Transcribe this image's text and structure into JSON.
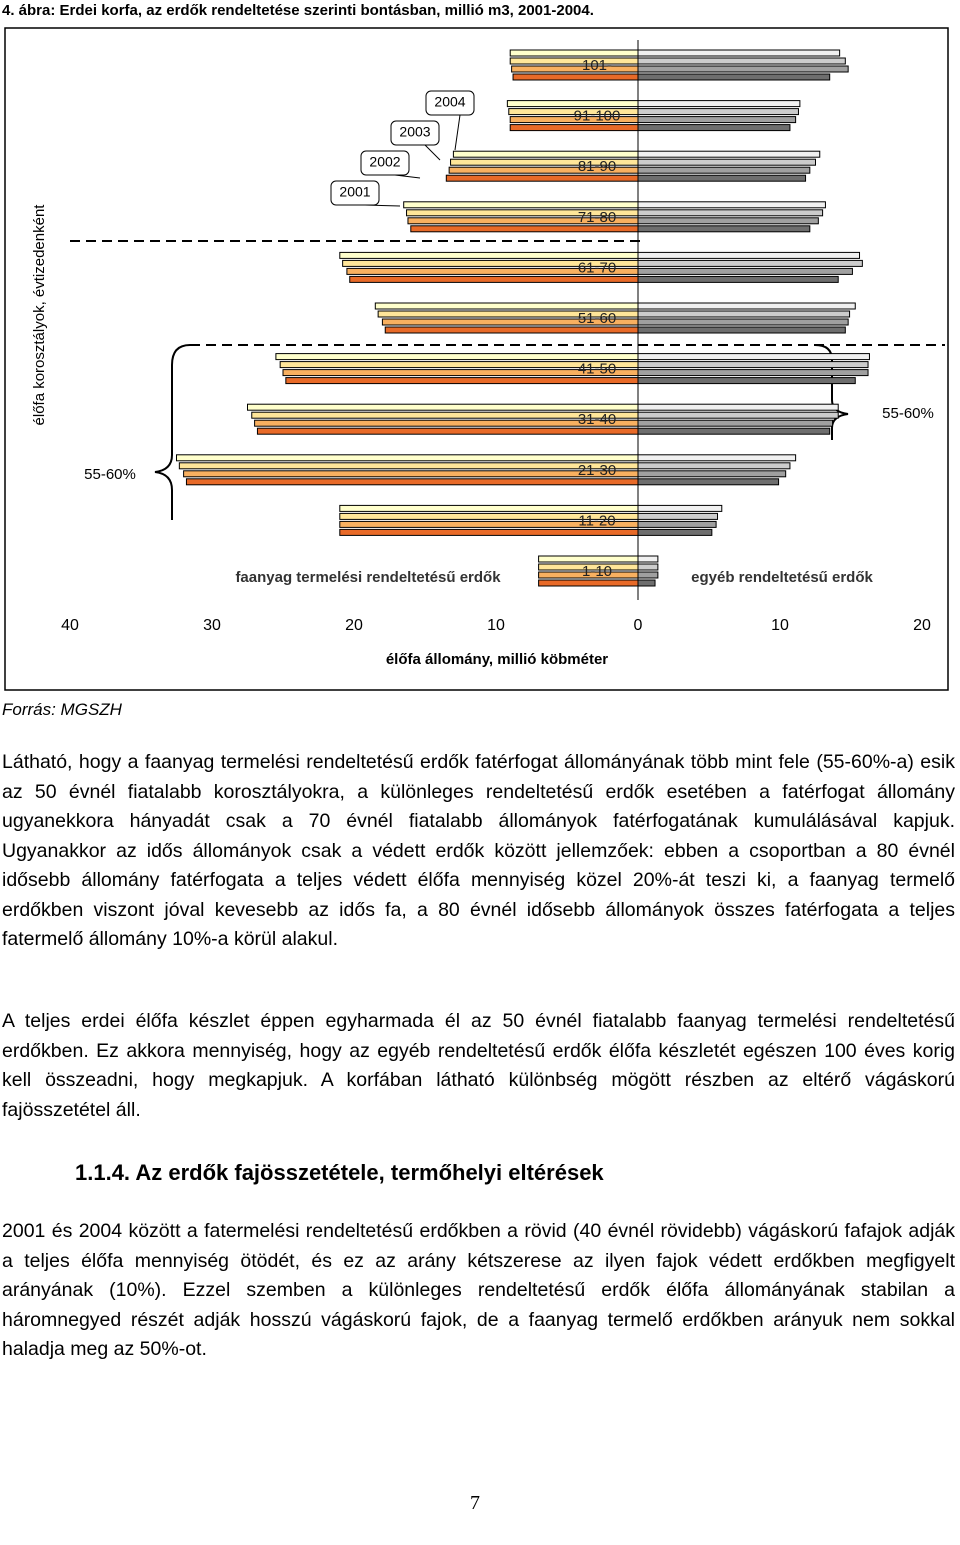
{
  "document": {
    "figure_title": "4. ábra: Erdei korfa, az erdők rendeltetése szerinti bontásban, millió m3, 2001-2004.",
    "source": "Forrás: MGSZH",
    "paragraphs": [
      "Látható, hogy a faanyag termelési rendeltetésű erdők fatérfogat állományának több mint fele (55-60%-a) esik az 50 évnél fiatalabb korosztályokra, a különleges rendeltetésű erdők esetében a fatérfogat állomány ugyanekkora hányadát csak a 70 évnél fiatalabb állományok fatérfogatának kumulálásával kapjuk. Ugyanakkor az idős állományok csak a védett erdők között jellemzőek: ebben a csoportban a 80 évnél idősebb állomány fatérfogata a teljes védett élőfa mennyiség közel 20%-át teszi ki, a faanyag termelő erdőkben viszont jóval kevesebb az idős fa, a 80 évnél idősebb állományok összes fatérfogata a teljes fatermelő állomány 10%-a körül alakul.",
      "A teljes erdei élőfa készlet éppen egyharmada él az 50 évnél fiatalabb faanyag termelési rendeltetésű erdőkben. Ez akkora mennyiség, hogy az egyéb rendeltetésű erdők élőfa készletét egészen 100 éves korig kell összeadni, hogy megkapjuk. A korfában látható különbség mögött részben az eltérő vágáskorú fajösszetétel áll."
    ],
    "heading_number": "1.1.4.",
    "heading_text": "Az erdők fajösszetétele, termőhelyi eltérések",
    "paragraphs_after": [
      "2001 és 2004 között a fatermelési rendeltetésű erdőkben a rövid (40 évnél rövidebb) vágáskorú fafajok adják a teljes élőfa mennyiség ötödét, és ez az arány kétszerese az ilyen fajok védett erdőkben megfigyelt arányának (10%). Ezzel szemben a különleges rendeltetésű erdők élőfa állományának stabilan a háromnegyed részét adják hosszú vágáskorú fajok, de a faanyag termelő erdőkben arányuk nem sokkal haladja meg az 50%-ot."
    ],
    "page_number": "7"
  },
  "chart_data": {
    "type": "pyramid",
    "x_label": "élőfa állomány, millió köbméter",
    "y_label": "élőfa korosztályok, évtizedenként",
    "left_label": "faanyag termelési rendeltetésű erdők",
    "right_label": "egyéb rendeltetésű erdők",
    "left_note": "55-60%",
    "right_note": "55-60%",
    "categories": [
      "1-10",
      "11-20",
      "21-30",
      "31-40",
      "41-50",
      "51-60",
      "61-70",
      "71-80",
      "81-90",
      "91-100",
      "101-"
    ],
    "xlim": [
      -40,
      20
    ],
    "xticks": [
      {
        "value": -40,
        "label": "40"
      },
      {
        "value": -30,
        "label": "30"
      },
      {
        "value": -20,
        "label": "20"
      },
      {
        "value": -10,
        "label": "10"
      },
      0,
      10,
      20
    ],
    "series": [
      {
        "name": "2001",
        "left_color": "#ffffcc",
        "right_color": "#f0f0f0",
        "left_values": [
          7.0,
          21.0,
          32.5,
          27.5,
          25.5,
          18.5,
          21.0,
          16.5,
          13.0,
          9.2,
          9.0
        ],
        "right_values": [
          1.4,
          5.9,
          11.1,
          14.1,
          16.3,
          15.3,
          15.6,
          13.2,
          12.8,
          11.4,
          14.2
        ]
      },
      {
        "name": "2002",
        "left_color": "#ffe699",
        "right_color": "#cccccc",
        "left_values": [
          7.0,
          21.0,
          32.3,
          27.2,
          25.2,
          18.3,
          20.8,
          16.3,
          13.2,
          9.1,
          9.0
        ],
        "right_values": [
          1.4,
          5.6,
          10.7,
          14.1,
          16.2,
          14.9,
          15.8,
          13.0,
          12.5,
          11.3,
          14.6
        ]
      },
      {
        "name": "2003",
        "left_color": "#f8b060",
        "right_color": "#a0a0a0",
        "left_values": [
          7.0,
          21.0,
          32.0,
          27.0,
          25.0,
          18.0,
          20.5,
          16.2,
          13.3,
          9.0,
          8.9
        ],
        "right_values": [
          1.4,
          5.5,
          10.4,
          13.7,
          16.2,
          14.8,
          15.1,
          12.7,
          12.1,
          11.1,
          14.8
        ]
      },
      {
        "name": "2004",
        "left_color": "#e86a28",
        "right_color": "#6e6e6e",
        "left_values": [
          7.0,
          21.0,
          31.8,
          26.8,
          24.8,
          17.8,
          20.3,
          16.0,
          13.5,
          9.0,
          8.8
        ],
        "right_values": [
          1.2,
          5.2,
          9.9,
          13.5,
          15.3,
          14.6,
          14.1,
          12.1,
          11.8,
          10.7,
          13.5
        ]
      }
    ]
  }
}
